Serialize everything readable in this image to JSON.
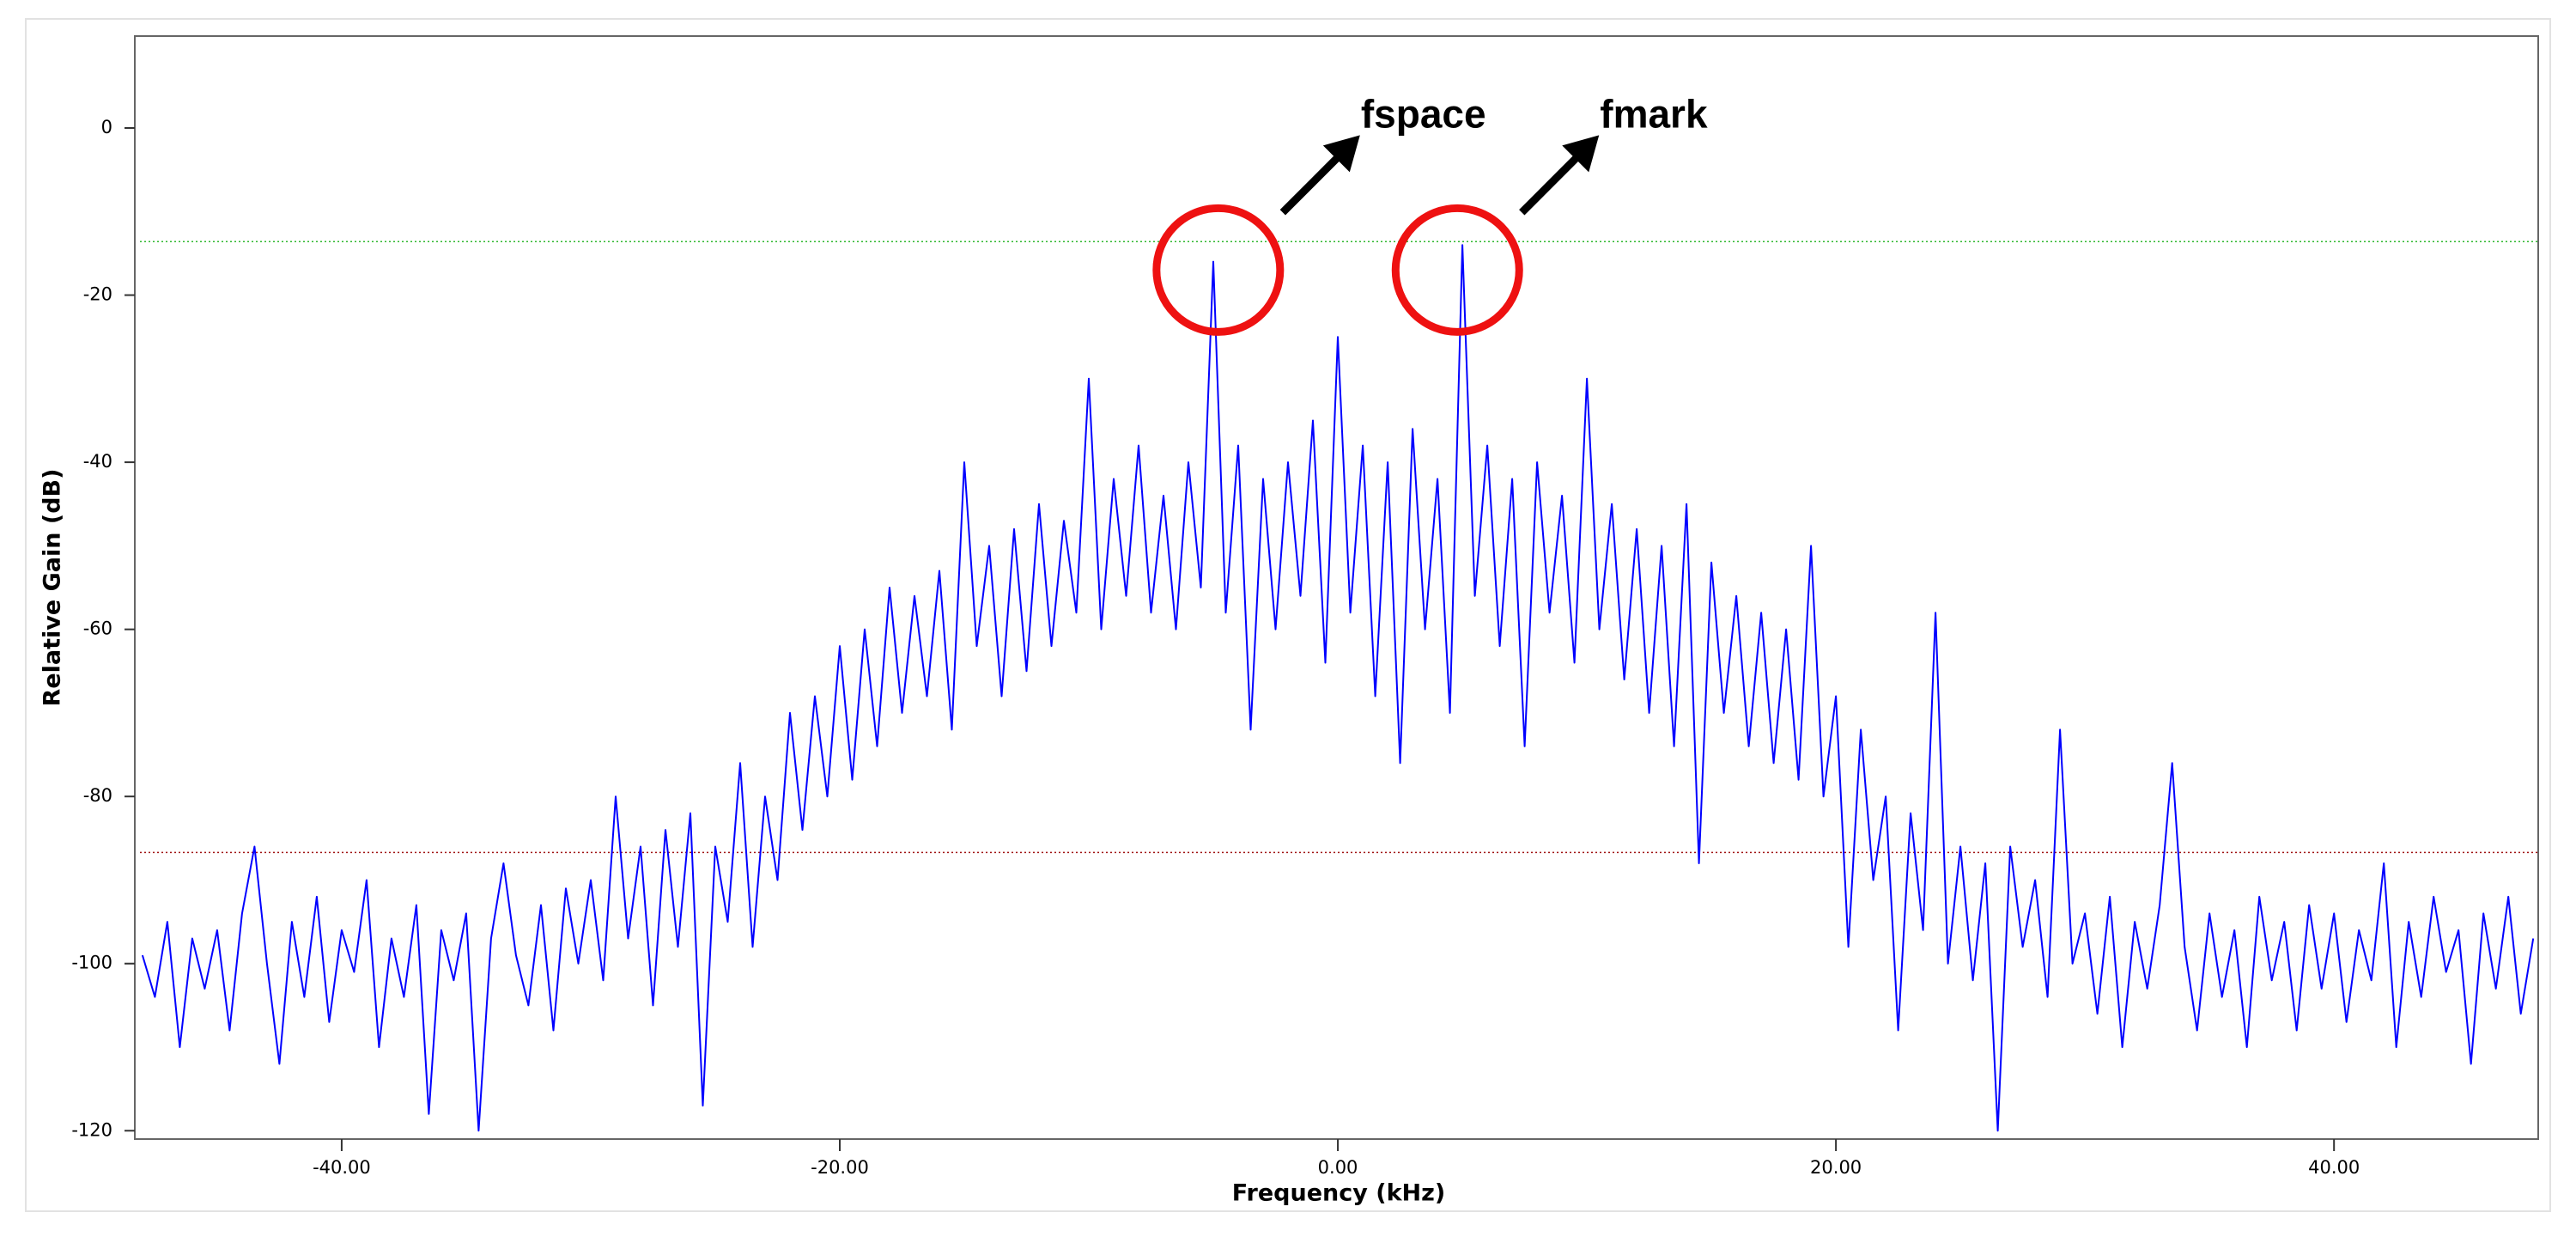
{
  "chart_data": {
    "type": "line",
    "xlabel": "Frequency (kHz)",
    "ylabel": "Relative Gain (dB)",
    "xlim": [
      -48.1,
      48.2
    ],
    "ylim": [
      -121,
      11
    ],
    "xticks": [
      {
        "value": -40,
        "label": "-40.00"
      },
      {
        "value": -20,
        "label": "-20.00"
      },
      {
        "value": 0,
        "label": "0.00"
      },
      {
        "value": 20,
        "label": "20.00"
      },
      {
        "value": 40,
        "label": "40.00"
      }
    ],
    "yticks": [
      0,
      -20,
      -40,
      -60,
      -80,
      -100,
      -120
    ],
    "hlines": [
      {
        "value": -13.6,
        "color": "#2eb82e"
      },
      {
        "value": -86.7,
        "color": "#a01010"
      }
    ],
    "annotations": [
      {
        "text": "fspace",
        "x": -4.8,
        "y": -17,
        "color": "#ee1111"
      },
      {
        "text": "fmark",
        "x": 4.8,
        "y": -17,
        "color": "#ee1111"
      }
    ],
    "x": [
      -48,
      -47.5,
      -47,
      -46.5,
      -46,
      -45.5,
      -45,
      -44.5,
      -44,
      -43.5,
      -43,
      -42.5,
      -42,
      -41.5,
      -41,
      -40.5,
      -40,
      -39.5,
      -39,
      -38.5,
      -38,
      -37.5,
      -37,
      -36.5,
      -36,
      -35.5,
      -35,
      -34.5,
      -34,
      -33.5,
      -33,
      -32.5,
      -32,
      -31.5,
      -31,
      -30.5,
      -30,
      -29.5,
      -29,
      -28.5,
      -28,
      -27.5,
      -27,
      -26.5,
      -26,
      -25.5,
      -25,
      -24.5,
      -24,
      -23.5,
      -23,
      -22.5,
      -22,
      -21.5,
      -21,
      -20.5,
      -20,
      -19.5,
      -19,
      -18.5,
      -18,
      -17.5,
      -17,
      -16.5,
      -16,
      -15.5,
      -15,
      -14.5,
      -14,
      -13.5,
      -13,
      -12.5,
      -12,
      -11.5,
      -11,
      -10.5,
      -10,
      -9.5,
      -9,
      -8.5,
      -8,
      -7.5,
      -7,
      -6.5,
      -6,
      -5.5,
      -5,
      -4.5,
      -4,
      -3.5,
      -3,
      -2.5,
      -2,
      -1.5,
      -1,
      -0.5,
      0,
      0.5,
      1,
      1.5,
      2,
      2.5,
      3,
      3.5,
      4,
      4.5,
      5,
      5.5,
      6,
      6.5,
      7,
      7.5,
      8,
      8.5,
      9,
      9.5,
      10,
      10.5,
      11,
      11.5,
      12,
      12.5,
      13,
      13.5,
      14,
      14.5,
      15,
      15.5,
      16,
      16.5,
      17,
      17.5,
      18,
      18.5,
      19,
      19.5,
      20,
      20.5,
      21,
      21.5,
      22,
      22.5,
      23,
      23.5,
      24,
      24.5,
      25,
      25.5,
      26,
      26.5,
      27,
      27.5,
      28,
      28.5,
      29,
      29.5,
      30,
      30.5,
      31,
      31.5,
      32,
      32.5,
      33,
      33.5,
      34,
      34.5,
      35,
      35.5,
      36,
      36.5,
      37,
      37.5,
      38,
      38.5,
      39,
      39.5,
      40,
      40.5,
      41,
      41.5,
      42,
      42.5,
      43,
      43.5,
      44,
      44.5,
      45,
      45.5,
      46,
      46.5,
      47,
      47.5,
      48
    ],
    "series": [
      {
        "color": "#0000ff",
        "values": [
          -99,
          -104,
          -95,
          -110,
          -97,
          -103,
          -96,
          -108,
          -94,
          -86,
          -100,
          -112,
          -95,
          -104,
          -92,
          -107,
          -96,
          -101,
          -90,
          -110,
          -97,
          -104,
          -93,
          -118,
          -96,
          -102,
          -94,
          -120,
          -97,
          -88,
          -99,
          -105,
          -93,
          -108,
          -91,
          -100,
          -90,
          -102,
          -80,
          -97,
          -86,
          -105,
          -84,
          -98,
          -82,
          -117,
          -86,
          -95,
          -76,
          -98,
          -80,
          -90,
          -70,
          -84,
          -68,
          -80,
          -62,
          -78,
          -60,
          -74,
          -55,
          -70,
          -56,
          -68,
          -53,
          -72,
          -40,
          -62,
          -50,
          -68,
          -48,
          -65,
          -45,
          -62,
          -47,
          -58,
          -30,
          -60,
          -42,
          -56,
          -38,
          -58,
          -44,
          -60,
          -40,
          -55,
          -16,
          -58,
          -38,
          -72,
          -42,
          -60,
          -40,
          -56,
          -35,
          -64,
          -25,
          -58,
          -38,
          -68,
          -40,
          -76,
          -36,
          -60,
          -42,
          -70,
          -14,
          -56,
          -38,
          -62,
          -42,
          -74,
          -40,
          -58,
          -44,
          -64,
          -30,
          -60,
          -45,
          -66,
          -48,
          -70,
          -50,
          -74,
          -45,
          -88,
          -52,
          -70,
          -56,
          -74,
          -58,
          -76,
          -60,
          -78,
          -50,
          -80,
          -68,
          -98,
          -72,
          -90,
          -80,
          -108,
          -82,
          -96,
          -58,
          -100,
          -86,
          -102,
          -88,
          -120,
          -86,
          -98,
          -90,
          -104,
          -72,
          -100,
          -94,
          -106,
          -92,
          -110,
          -95,
          -103,
          -93,
          -76,
          -98,
          -108,
          -94,
          -104,
          -96,
          -110,
          -92,
          -102,
          -95,
          -108,
          -93,
          -103,
          -94,
          -107,
          -96,
          -102,
          -88,
          -110,
          -95,
          -104,
          -92,
          -101,
          -96,
          -112,
          -94,
          -103,
          -92,
          -106,
          -97
        ]
      }
    ]
  }
}
